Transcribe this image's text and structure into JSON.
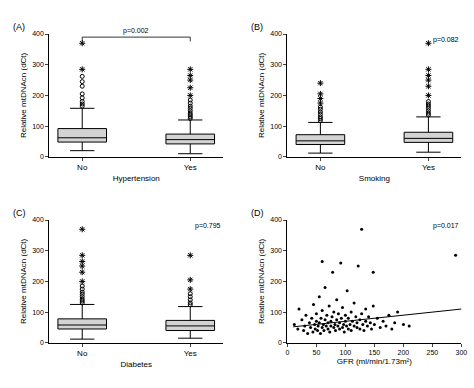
{
  "chart_data": [
    {
      "type": "box",
      "title": "(A)",
      "xlabel": "Hypertension",
      "ylabel": "Relative mtDNAcn (dCt)",
      "categories": [
        "No",
        "Yes"
      ],
      "color": "#d3d3d3",
      "boxes": [
        {
          "category": "No",
          "lower_whisker": 20,
          "q1": 48,
          "median": 62,
          "q3": 92,
          "upper_whisker": 158,
          "outliers": [
            165,
            172,
            180,
            192,
            205,
            230,
            245,
            262
          ],
          "extremes": [
            285,
            370
          ]
        },
        {
          "category": "Yes",
          "lower_whisker": 10,
          "q1": 42,
          "median": 56,
          "q3": 74,
          "upper_whisker": 120,
          "outliers": [
            125,
            130,
            136,
            142,
            150,
            158,
            165,
            175,
            185
          ],
          "extremes": [
            200,
            225,
            250,
            265,
            285
          ]
        }
      ],
      "bracket": {
        "from": "No",
        "to": "Yes",
        "label": "p=0.002"
      },
      "ylim": [
        0,
        400
      ],
      "yticks": [
        0,
        100,
        200,
        300,
        400
      ]
    },
    {
      "type": "box",
      "title": "(B)",
      "xlabel": "Smoking",
      "ylabel": "Relative mtDNAcn (dCt)",
      "categories": [
        "No",
        "Yes"
      ],
      "color": "#d3d3d3",
      "boxes": [
        {
          "category": "No",
          "lower_whisker": 12,
          "q1": 40,
          "median": 52,
          "q3": 72,
          "upper_whisker": 112,
          "outliers": [
            118,
            124,
            130,
            138,
            146,
            155,
            162
          ],
          "extremes": [
            175,
            190,
            205,
            240
          ]
        },
        {
          "category": "Yes",
          "lower_whisker": 15,
          "q1": 47,
          "median": 60,
          "q3": 80,
          "upper_whisker": 130,
          "outliers": [
            136,
            142,
            150,
            158,
            165,
            172,
            180
          ],
          "extremes": [
            200,
            230,
            250,
            265,
            285,
            370
          ]
        }
      ],
      "annotation": "p=0.082",
      "ylim": [
        0,
        400
      ],
      "yticks": [
        0,
        100,
        200,
        300,
        400
      ]
    },
    {
      "type": "box",
      "title": "(C)",
      "xlabel": "Diabetes",
      "ylabel": "Relative mtDNAcn (dCt)",
      "categories": [
        "No",
        "Yes"
      ],
      "color": "#d3d3d3",
      "boxes": [
        {
          "category": "No",
          "lower_whisker": 12,
          "q1": 45,
          "median": 58,
          "q3": 78,
          "upper_whisker": 125,
          "outliers": [
            130,
            136,
            142,
            150,
            158,
            165,
            175,
            185
          ],
          "extremes": [
            200,
            230,
            250,
            265,
            285,
            370
          ]
        },
        {
          "category": "Yes",
          "lower_whisker": 15,
          "q1": 40,
          "median": 55,
          "q3": 73,
          "upper_whisker": 118,
          "outliers": [
            124,
            130,
            140,
            150,
            160
          ],
          "extremes": [
            175,
            205,
            285
          ]
        }
      ],
      "annotation": "p=0.795",
      "ylim": [
        0,
        400
      ],
      "yticks": [
        0,
        100,
        200,
        300,
        400
      ]
    },
    {
      "type": "scatter",
      "title": "(D)",
      "xlabel": "GFR (ml/min/1.73m²)",
      "ylabel": "Relative mtDNAcn (dCt)",
      "color": "#000000",
      "x": [
        12,
        18,
        20,
        25,
        28,
        30,
        32,
        35,
        38,
        40,
        42,
        44,
        45,
        47,
        48,
        50,
        50,
        52,
        53,
        55,
        55,
        57,
        58,
        60,
        60,
        62,
        63,
        65,
        65,
        67,
        68,
        70,
        70,
        72,
        73,
        75,
        75,
        77,
        78,
        80,
        80,
        82,
        83,
        85,
        85,
        87,
        88,
        90,
        90,
        92,
        93,
        95,
        95,
        97,
        98,
        100,
        100,
        102,
        103,
        105,
        105,
        108,
        110,
        110,
        112,
        115,
        115,
        118,
        120,
        120,
        122,
        125,
        125,
        128,
        130,
        132,
        135,
        135,
        138,
        140,
        143,
        145,
        148,
        150,
        155,
        160,
        165,
        170,
        175,
        180,
        185,
        190,
        200,
        210,
        290,
        148,
        60,
        128
      ],
      "values": [
        60,
        45,
        110,
        75,
        40,
        55,
        90,
        30,
        65,
        50,
        80,
        35,
        125,
        60,
        45,
        70,
        95,
        40,
        55,
        65,
        150,
        30,
        80,
        50,
        105,
        60,
        40,
        75,
        180,
        55,
        90,
        45,
        65,
        120,
        35,
        70,
        55,
        85,
        230,
        50,
        100,
        60,
        40,
        75,
        140,
        55,
        95,
        45,
        65,
        260,
        80,
        50,
        115,
        60,
        35,
        70,
        90,
        55,
        170,
        45,
        80,
        60,
        100,
        40,
        70,
        55,
        130,
        85,
        50,
        65,
        250,
        75,
        45,
        95,
        60,
        40,
        110,
        70,
        55,
        85,
        65,
        45,
        120,
        60,
        80,
        50,
        70,
        55,
        90,
        45,
        65,
        100,
        60,
        55,
        285,
        230,
        265,
        370
      ],
      "trend": {
        "x": [
          10,
          300
        ],
        "values": [
          52,
          110
        ]
      },
      "annotation": "p=0.017",
      "xlim": [
        0,
        300
      ],
      "xticks": [
        0,
        50,
        100,
        150,
        200,
        250,
        300
      ],
      "ylim": [
        0,
        400
      ],
      "yticks": [
        0,
        100,
        200,
        300,
        400
      ]
    }
  ]
}
